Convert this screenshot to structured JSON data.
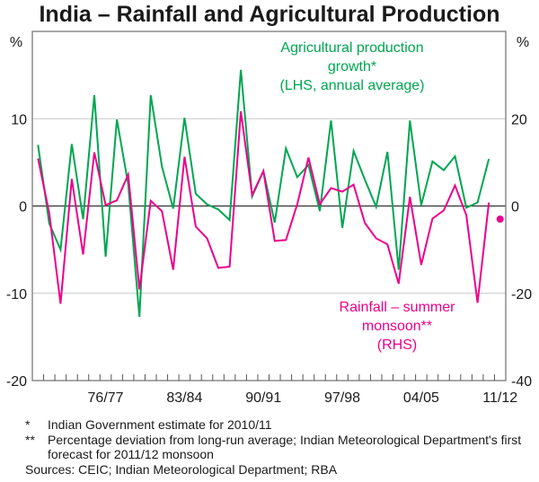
{
  "chart_data": {
    "type": "line",
    "title": "India – Rainfall and Agricultural Production",
    "left_axis": {
      "unit_label": "%",
      "ylim": [
        -20,
        20
      ],
      "ticks": [
        -20,
        -10,
        0,
        10
      ]
    },
    "right_axis": {
      "unit_label": "%",
      "ylim": [
        -40,
        40
      ],
      "ticks": [
        -40,
        -20,
        0,
        20
      ]
    },
    "x": [
      "70/71",
      "71/72",
      "72/73",
      "73/74",
      "74/75",
      "75/76",
      "76/77",
      "77/78",
      "78/79",
      "79/80",
      "80/81",
      "81/82",
      "82/83",
      "83/84",
      "84/85",
      "85/86",
      "86/87",
      "87/88",
      "88/89",
      "89/90",
      "90/91",
      "91/92",
      "92/93",
      "93/94",
      "94/95",
      "95/96",
      "96/97",
      "97/98",
      "98/99",
      "99/00",
      "00/01",
      "01/02",
      "02/03",
      "03/04",
      "04/05",
      "05/06",
      "06/07",
      "07/08",
      "08/09",
      "09/10",
      "10/11",
      "11/12"
    ],
    "x_tick_labels": [
      "76/77",
      "83/84",
      "90/91",
      "97/98",
      "04/05",
      "11/12"
    ],
    "series": [
      {
        "name": "Agricultural production growth* (LHS, annual average)",
        "label_lines": [
          "Agricultural production",
          "growth*",
          "(LHS, annual average)"
        ],
        "axis": "left",
        "color": "#00a651",
        "values": [
          7.0,
          -2.0,
          -5.0,
          7.1,
          -1.5,
          12.7,
          -5.8,
          9.9,
          2.5,
          -12.7,
          12.7,
          4.5,
          -0.3,
          10.1,
          1.4,
          0.2,
          -0.4,
          -1.6,
          15.6,
          1.1,
          4.0,
          -1.9,
          6.6,
          3.3,
          4.7,
          -0.6,
          9.8,
          -2.5,
          6.3,
          3.0,
          -0.1,
          6.2,
          -7.3,
          9.8,
          0.1,
          5.1,
          4.1,
          5.7,
          -0.2,
          0.4,
          5.4
        ]
      },
      {
        "name": "Rainfall – summer monsoon** (RHS)",
        "label_lines": [
          "Rainfall – summer",
          "monsoon**",
          "(RHS)"
        ],
        "axis": "right",
        "color": "#ec008c",
        "values": [
          10.9,
          -1.6,
          -22.4,
          6.2,
          -11.1,
          12.3,
          0.2,
          1.3,
          7.2,
          -19.1,
          1.2,
          -1.2,
          -14.6,
          11.3,
          -4.7,
          -7.4,
          -14.2,
          -13.9,
          21.7,
          2.5,
          8.0,
          -8.0,
          -7.8,
          0.4,
          11.1,
          0.4,
          4.1,
          3.3,
          4.9,
          -3.9,
          -7.4,
          -8.8,
          -17.8,
          2.1,
          -13.5,
          -2.9,
          -1.0,
          4.7,
          -2.1,
          -22.2,
          0.8
        ],
        "forecast": {
          "x": "11/12",
          "value": -3.0
        }
      }
    ],
    "grid": true
  },
  "notes": [
    {
      "mark": "*",
      "text": "Indian Government estimate for 2010/11"
    },
    {
      "mark": "**",
      "text": "Percentage deviation from long-run average; Indian Meteorological Department's first forecast for 2011/12 monsoon"
    }
  ],
  "sources": "Sources: CEIC; Indian Meteorological Department; RBA"
}
